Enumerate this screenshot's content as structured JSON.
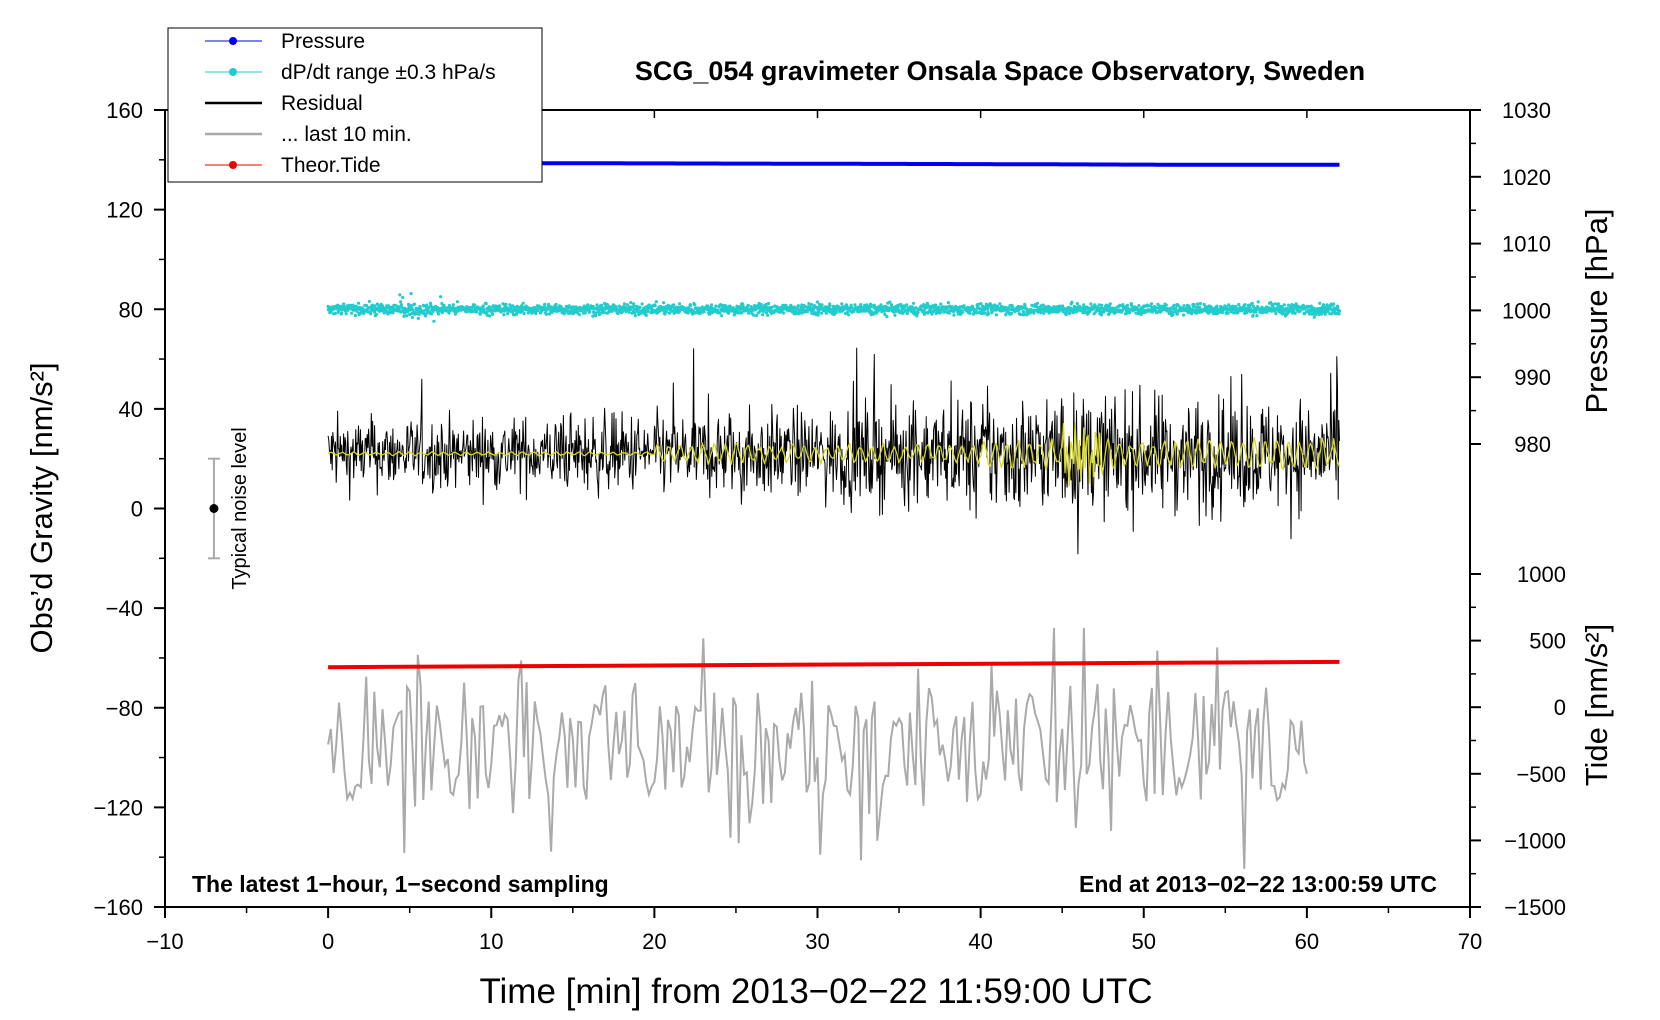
{
  "chart_data": {
    "type": "line",
    "title": "SCG_054 gravimeter Onsala Space Observatory, Sweden",
    "xlabel": "Time [min] from 2013−02−22 11:59:00 UTC",
    "ylabel_left": "Obs’d Gravity [nm/s²]",
    "ylabel_right_pressure": "Pressure [hPa]",
    "ylabel_right_tide": "Tide [nm/s²]",
    "xlim": [
      -10,
      70
    ],
    "ylim": [
      -160,
      160
    ],
    "pressure_axis_range": [
      980,
      1030
    ],
    "tide_axis_range": [
      -1500,
      1000
    ],
    "x_ticks": [
      "−10",
      "0",
      "10",
      "20",
      "30",
      "40",
      "50",
      "60",
      "70"
    ],
    "y_ticks": [
      "−160",
      "−120",
      "−80",
      "−40",
      "0",
      "40",
      "80",
      "120",
      "160"
    ],
    "pressure_ticks": [
      "980",
      "990",
      "1000",
      "1010",
      "1020",
      "1030"
    ],
    "tide_ticks": [
      "−1500",
      "−1000",
      "−500",
      "0",
      "500",
      "1000"
    ],
    "legend": {
      "position": "top-left",
      "entries": [
        {
          "label": "Pressure",
          "color": "#0000ee",
          "marker": true
        },
        {
          "label": "dP/dt range ±0.3 hPa/s",
          "color": "#22cccc",
          "marker": true
        },
        {
          "label": "Residual",
          "color": "#000000",
          "marker": false
        },
        {
          "label": "... last 10 min.",
          "color": "#aaaaaa",
          "marker": false
        },
        {
          "label": "Theor.Tide",
          "color": "#ee0000",
          "marker": true
        }
      ]
    },
    "series": [
      {
        "name": "Pressure",
        "axis": "pressure",
        "x": [
          0,
          21,
          40,
          53,
          62
        ],
        "values": [
          1022.1,
          1022.0,
          1021.9,
          1021.8,
          1021.8
        ]
      },
      {
        "name": "dP/dt range",
        "axis": "left",
        "x": [
          0,
          62
        ],
        "values": [
          80,
          80
        ],
        "noise": 1.5
      },
      {
        "name": "Residual",
        "axis": "left",
        "x": [
          0,
          62
        ],
        "values": [
          22,
          22
        ],
        "noise_envelope": [
          10,
          10,
          11,
          12,
          14,
          16,
          16,
          15
        ]
      },
      {
        "name": "Residual (smoothed)",
        "axis": "left",
        "x": [
          0,
          62
        ],
        "values": [
          22,
          22
        ],
        "color": "#d8d820"
      },
      {
        "name": "... last 10 min.",
        "axis": "left",
        "x": [
          0,
          60
        ],
        "values": [
          -95,
          -95
        ],
        "range": [
          -145,
          -48
        ]
      },
      {
        "name": "Theor.Tide",
        "axis": "tide",
        "x": [
          0,
          62
        ],
        "values": [
          300,
          340
        ]
      }
    ],
    "noise_bar": {
      "x": -7,
      "center": 0,
      "half_range": 20,
      "label": "Typical noise level"
    },
    "annotations": {
      "left": "The latest 1−hour, 1−second sampling",
      "right": "End at 2013−02−22 13:00:59 UTC"
    }
  }
}
